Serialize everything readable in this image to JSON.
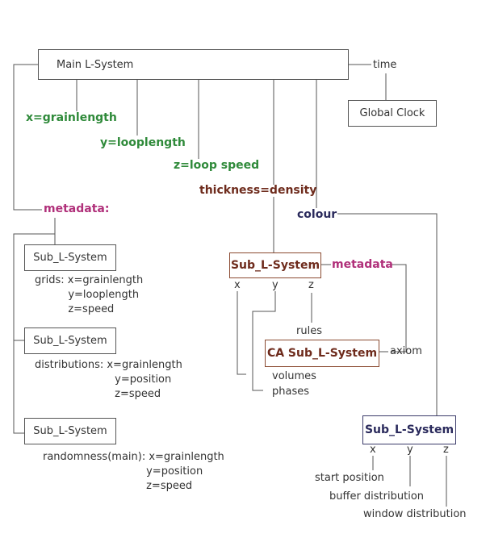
{
  "diagram": {
    "main_box": "Main L-System",
    "time": "time",
    "global_clock": "Global Clock",
    "x_grainlength": "x=grainlength",
    "y_looplength": "y=looplength",
    "z_loopspeed": "z=loop speed",
    "thickness": "thickness=density",
    "colour": "colour",
    "metadata_left": "metadata:",
    "sub1": {
      "box": "Sub_L-System",
      "text": "grids: x=grainlength\n          y=looplength\n          z=speed"
    },
    "sub2": {
      "box": "Sub_L-System",
      "text": "distributions: x=grainlength\n                        y=position\n                        z=speed"
    },
    "sub3": {
      "box": "Sub_L-System",
      "text": "randomness(main): x=grainlength\n                               y=position\n                               z=speed"
    },
    "sub_center": {
      "box": "Sub_L-System",
      "x": "x",
      "y": "y",
      "z": "z",
      "metadata": "metadata",
      "rules": "rules",
      "volumes": "volumes",
      "phases": "phases"
    },
    "ca_sub": "CA Sub_L-System",
    "axiom": "axiom",
    "sub_right": {
      "box": "Sub_L-System",
      "x": "x",
      "y": "y",
      "z": "z",
      "start_position": "start position",
      "buffer_distribution": "buffer distribution",
      "window_distribution": "window distribution"
    }
  },
  "colors": {
    "green": "#2f8a3a",
    "brown": "#6e2b1c",
    "magenta": "#b0307a",
    "navy": "#2a2a5c",
    "line": "#555555"
  }
}
